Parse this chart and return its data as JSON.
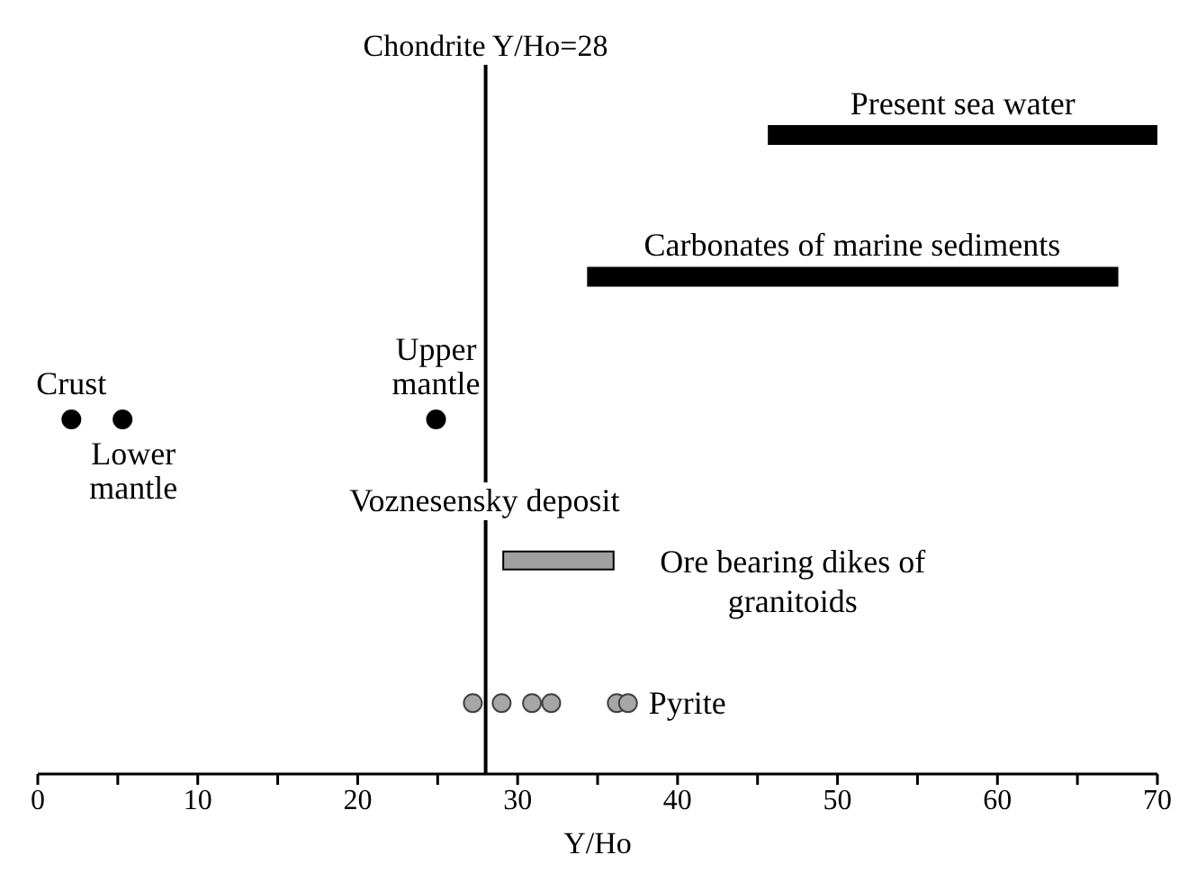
{
  "chart_data": {
    "type": "bar",
    "orientation": "horizontal",
    "xlabel": "Y/Ho",
    "categories": [
      "Present sea water",
      "Carbonates of marine sediments",
      null,
      "Ore bearing dikes of granitoids",
      "Pyrite"
    ],
    "series": [
      {
        "type": "bar",
        "values": [
          24.3,
          33.1,
          null,
          6.9,
          null
        ],
        "base": [
          45.7,
          34.4,
          null,
          29.1,
          null
        ],
        "colors": [
          "#000000",
          "#000000",
          null,
          "#a0a0a0",
          null
        ]
      },
      {
        "type": "scatter",
        "name": "Crust",
        "color": "#000000",
        "values": [
          null,
          null,
          2.1,
          null,
          null
        ]
      },
      {
        "type": "scatter",
        "name": "Lower mantle",
        "color": "#000000",
        "values": [
          null,
          null,
          5.3,
          null,
          null
        ]
      },
      {
        "type": "scatter",
        "name": "Upper mantle",
        "color": "#000000",
        "values": [
          null,
          null,
          24.9,
          null,
          null
        ]
      },
      {
        "type": "scatter",
        "color": "#a6a6a6",
        "values": [
          null,
          null,
          null,
          null,
          27.2
        ]
      },
      {
        "type": "scatter",
        "color": "#a6a6a6",
        "values": [
          null,
          null,
          null,
          null,
          29.0
        ]
      },
      {
        "type": "scatter",
        "color": "#a6a6a6",
        "values": [
          null,
          null,
          null,
          null,
          30.9
        ]
      },
      {
        "type": "scatter",
        "color": "#a6a6a6",
        "values": [
          null,
          null,
          null,
          null,
          32.1
        ]
      },
      {
        "type": "scatter",
        "color": "#a6a6a6",
        "values": [
          null,
          null,
          null,
          null,
          36.2
        ]
      },
      {
        "type": "scatter",
        "color": "#a6a6a6",
        "values": [
          null,
          null,
          null,
          null,
          36.9
        ]
      }
    ],
    "marker": "circle",
    "xlim": [
      0,
      70
    ],
    "xticks": [
      0,
      {
        "value": 5,
        "label": null
      },
      10,
      {
        "value": 15,
        "label": null
      },
      20,
      {
        "value": 25,
        "label": null
      },
      30,
      {
        "value": 35,
        "label": null
      },
      40,
      {
        "value": 45,
        "label": null
      },
      50,
      {
        "value": 55,
        "label": null
      },
      60,
      {
        "value": 65,
        "label": null
      },
      70
    ],
    "ref_lines": [
      {
        "axis": "x",
        "value": 28,
        "label": "Chondrite Y/Ho=28",
        "color": "#000000"
      }
    ],
    "annotations": [
      "Voznesensky deposit"
    ],
    "grid": false,
    "legend": false
  }
}
